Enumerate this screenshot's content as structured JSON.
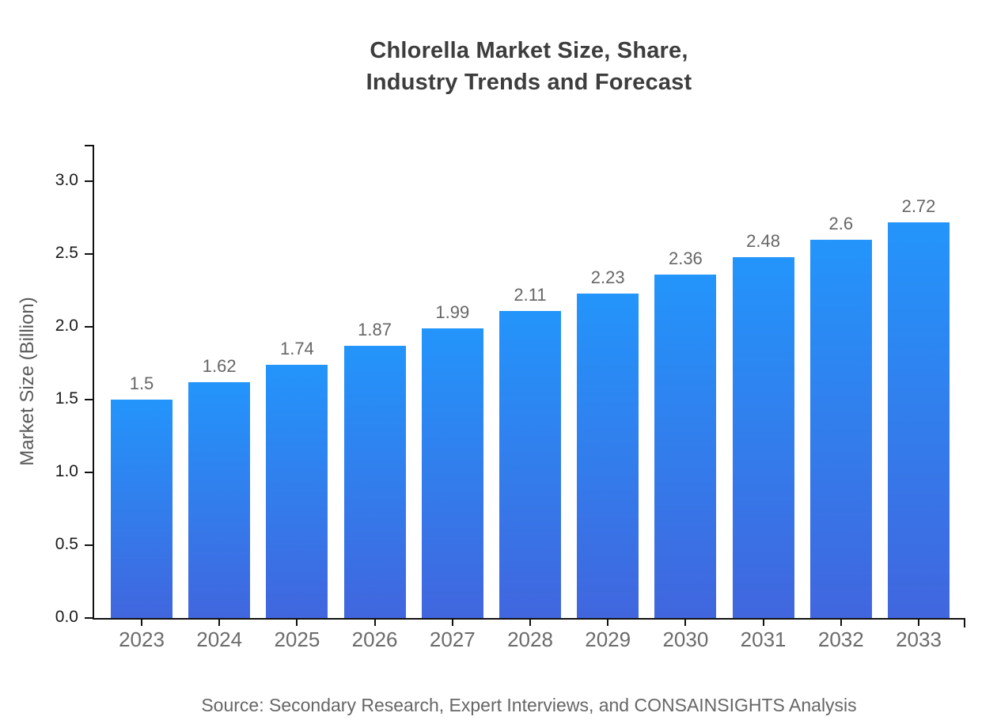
{
  "title": {
    "line1": "Chlorella Market Size, Share,",
    "line2": "Industry Trends and Forecast"
  },
  "chart_data": {
    "type": "bar",
    "title": "Chlorella Market Size, Share, Industry Trends and Forecast",
    "categories": [
      "2023",
      "2024",
      "2025",
      "2026",
      "2027",
      "2028",
      "2029",
      "2030",
      "2031",
      "2032",
      "2033"
    ],
    "values": [
      1.5,
      1.62,
      1.74,
      1.87,
      1.99,
      2.11,
      2.23,
      2.36,
      2.48,
      2.6,
      2.72
    ],
    "value_labels": [
      "1.5",
      "1.62",
      "1.74",
      "1.87",
      "1.99",
      "2.11",
      "2.23",
      "2.36",
      "2.48",
      "2.6",
      "2.72"
    ],
    "xlabel": "",
    "ylabel": "Market Size (Billion)",
    "ylim": [
      0,
      3.25
    ],
    "yticks": [
      0.0,
      0.5,
      1.0,
      1.5,
      2.0,
      2.5,
      3.0
    ],
    "grid": false,
    "legend": "none",
    "bar_color_top": "#2395fb",
    "bar_color_bottom": "#4166de",
    "axis_color": "#111111",
    "tick_label_color": "#1a1a1a",
    "category_label_color": "#6b6b6b",
    "value_label_color": "#666666",
    "title_color": "#3d3d3d"
  },
  "footer": {
    "source": "Source: Secondary Research, Expert Interviews, and CONSAINSIGHTS Analysis"
  }
}
